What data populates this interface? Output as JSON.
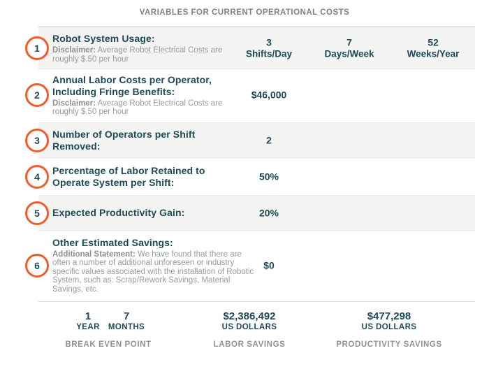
{
  "title": "VARIABLES FOR CURRENT OPERATIONAL COSTS",
  "colors": {
    "accent_orange": "#f15c2a",
    "teal_text": "#1d4a56",
    "note_gray": "#989a9d",
    "caption_gray": "#909295",
    "band_bg": "#f4f4f2",
    "divider": "#d8d8d6"
  },
  "rows": [
    {
      "num": "1",
      "label": "Robot System Usage:",
      "note_bold": "Disclaimer:",
      "note_rest": "Average Robot Electrical Costs are roughly $.50 per hour",
      "values": [
        {
          "value": "3",
          "unit": "Shifts/Day"
        },
        {
          "value": "7",
          "unit": "Days/Week"
        },
        {
          "value": "52",
          "unit": "Weeks/Year"
        }
      ]
    },
    {
      "num": "2",
      "label": "Annual Labor Costs per Operator, Including Fringe Benefits:",
      "note_bold": "Disclaimer:",
      "note_rest": "Average Robot Electrical Costs are roughly $.50 per hour",
      "values": [
        {
          "value": "$46,000",
          "unit": ""
        }
      ]
    },
    {
      "num": "3",
      "label": "Number of Operators per Shift Removed:",
      "values": [
        {
          "value": "2",
          "unit": ""
        }
      ]
    },
    {
      "num": "4",
      "label": "Percentage of Labor Retained to Operate System per Shift:",
      "values": [
        {
          "value": "50%",
          "unit": ""
        }
      ]
    },
    {
      "num": "5",
      "label": "Expected Productivity Gain:",
      "values": [
        {
          "value": "20%",
          "unit": ""
        }
      ]
    },
    {
      "num": "6",
      "label": "Other Estimated Savings:",
      "note_bold": "Additional Statement:",
      "note_rest": "We have found that there are often a number of additional unforeseen or industry specific values associated with the installation of Robotic System, such as: Scrap/Rework Savings, Material Savings, etc.",
      "values": [
        {
          "value": "$0",
          "unit": ""
        }
      ]
    }
  ],
  "summary": {
    "break_even": {
      "items": [
        {
          "value": "1",
          "unit": "YEAR"
        },
        {
          "value": "7",
          "unit": "MONTHS"
        }
      ],
      "caption": "BREAK EVEN POINT"
    },
    "labor": {
      "value": "$2,386,492",
      "unit": "US DOLLARS",
      "caption": "LABOR SAVINGS"
    },
    "productivity": {
      "value": "$477,298",
      "unit": "US DOLLARS",
      "caption": "PRODUCTIVITY SAVINGS"
    }
  }
}
